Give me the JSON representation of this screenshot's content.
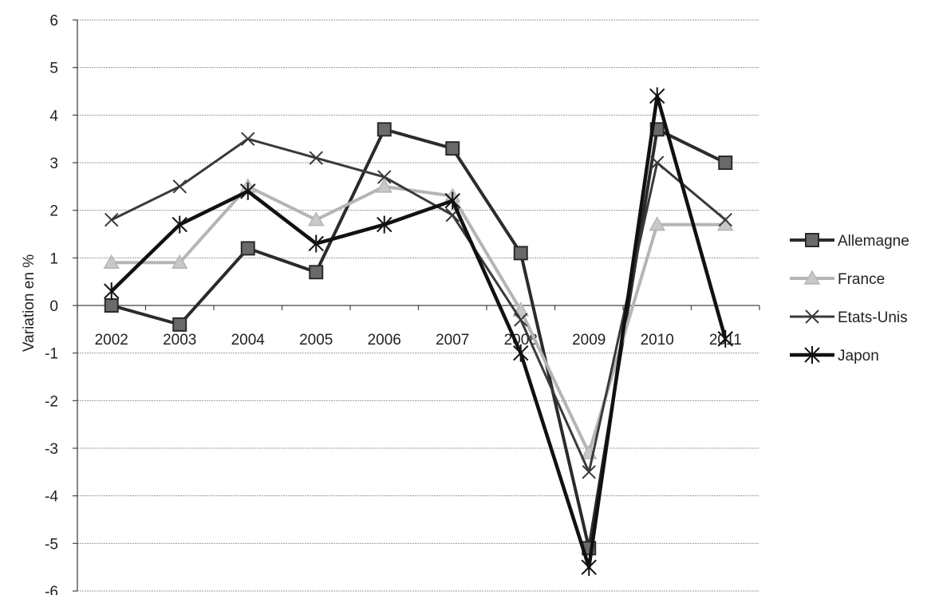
{
  "chart_data": {
    "type": "line",
    "title": "",
    "xlabel": "",
    "ylabel": "Variation en %",
    "ylim": [
      -6,
      6
    ],
    "yticks": [
      6,
      5,
      4,
      3,
      2,
      1,
      0,
      -1,
      -2,
      -3,
      -4,
      -5,
      -6
    ],
    "categories": [
      "2002",
      "2003",
      "2004",
      "2005",
      "2006",
      "2007",
      "2008",
      "2009",
      "2010",
      "2011"
    ],
    "grid": true,
    "legend_position": "right",
    "series": [
      {
        "name": "Allemagne",
        "marker": "square",
        "color": "#2b2b2b",
        "values": [
          0.0,
          -0.4,
          1.2,
          0.7,
          3.7,
          3.3,
          1.1,
          -5.1,
          3.7,
          3.0
        ]
      },
      {
        "name": "France",
        "marker": "triangle",
        "color": "#b5b5b5",
        "values": [
          0.9,
          0.9,
          2.5,
          1.8,
          2.5,
          2.3,
          -0.1,
          -3.1,
          1.7,
          1.7
        ]
      },
      {
        "name": "Etats-Unis",
        "marker": "x",
        "color": "#3a3a3a",
        "values": [
          1.8,
          2.5,
          3.5,
          3.1,
          2.7,
          1.9,
          -0.3,
          -3.5,
          3.0,
          1.8
        ]
      },
      {
        "name": "Japon",
        "marker": "star",
        "color": "#111111",
        "values": [
          0.3,
          1.7,
          2.4,
          1.3,
          1.7,
          2.2,
          -1.0,
          -5.5,
          4.4,
          -0.7
        ]
      }
    ]
  }
}
